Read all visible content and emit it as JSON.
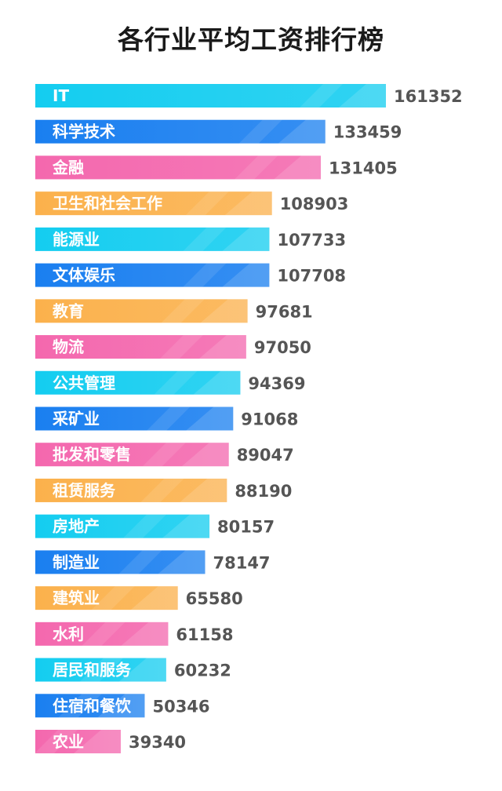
{
  "chart_data": {
    "type": "bar",
    "orientation": "horizontal",
    "title": "各行业平均工资排行榜",
    "categories": [
      "IT",
      "科学技术",
      "金融",
      "卫生和社会工作",
      "能源业",
      "文体娱乐",
      "教育",
      "物流",
      "公共管理",
      "采矿业",
      "批发和零售",
      "租赁服务",
      "房地产",
      "制造业",
      "建筑业",
      "水利",
      "居民和服务",
      "住宿和餐饮",
      "农业"
    ],
    "values": [
      161352,
      133459,
      131405,
      108903,
      107733,
      107708,
      97681,
      97050,
      94369,
      91068,
      89047,
      88190,
      80157,
      78147,
      65580,
      61158,
      60232,
      50346,
      39340
    ],
    "xlim": [
      0,
      161352
    ],
    "grid": false,
    "legend": "none"
  },
  "colors": {
    "cyan": "#14CDF0",
    "blue": "#1A7FF0",
    "pink": "#F468AE",
    "orange": "#FBB14C",
    "value_text": "#555555",
    "label_text": "#ffffff"
  },
  "bar_colors": [
    "cyan",
    "blue",
    "pink",
    "orange",
    "cyan",
    "blue",
    "orange",
    "pink",
    "cyan",
    "blue",
    "pink",
    "orange",
    "cyan",
    "blue",
    "orange",
    "pink",
    "cyan",
    "blue",
    "pink"
  ]
}
